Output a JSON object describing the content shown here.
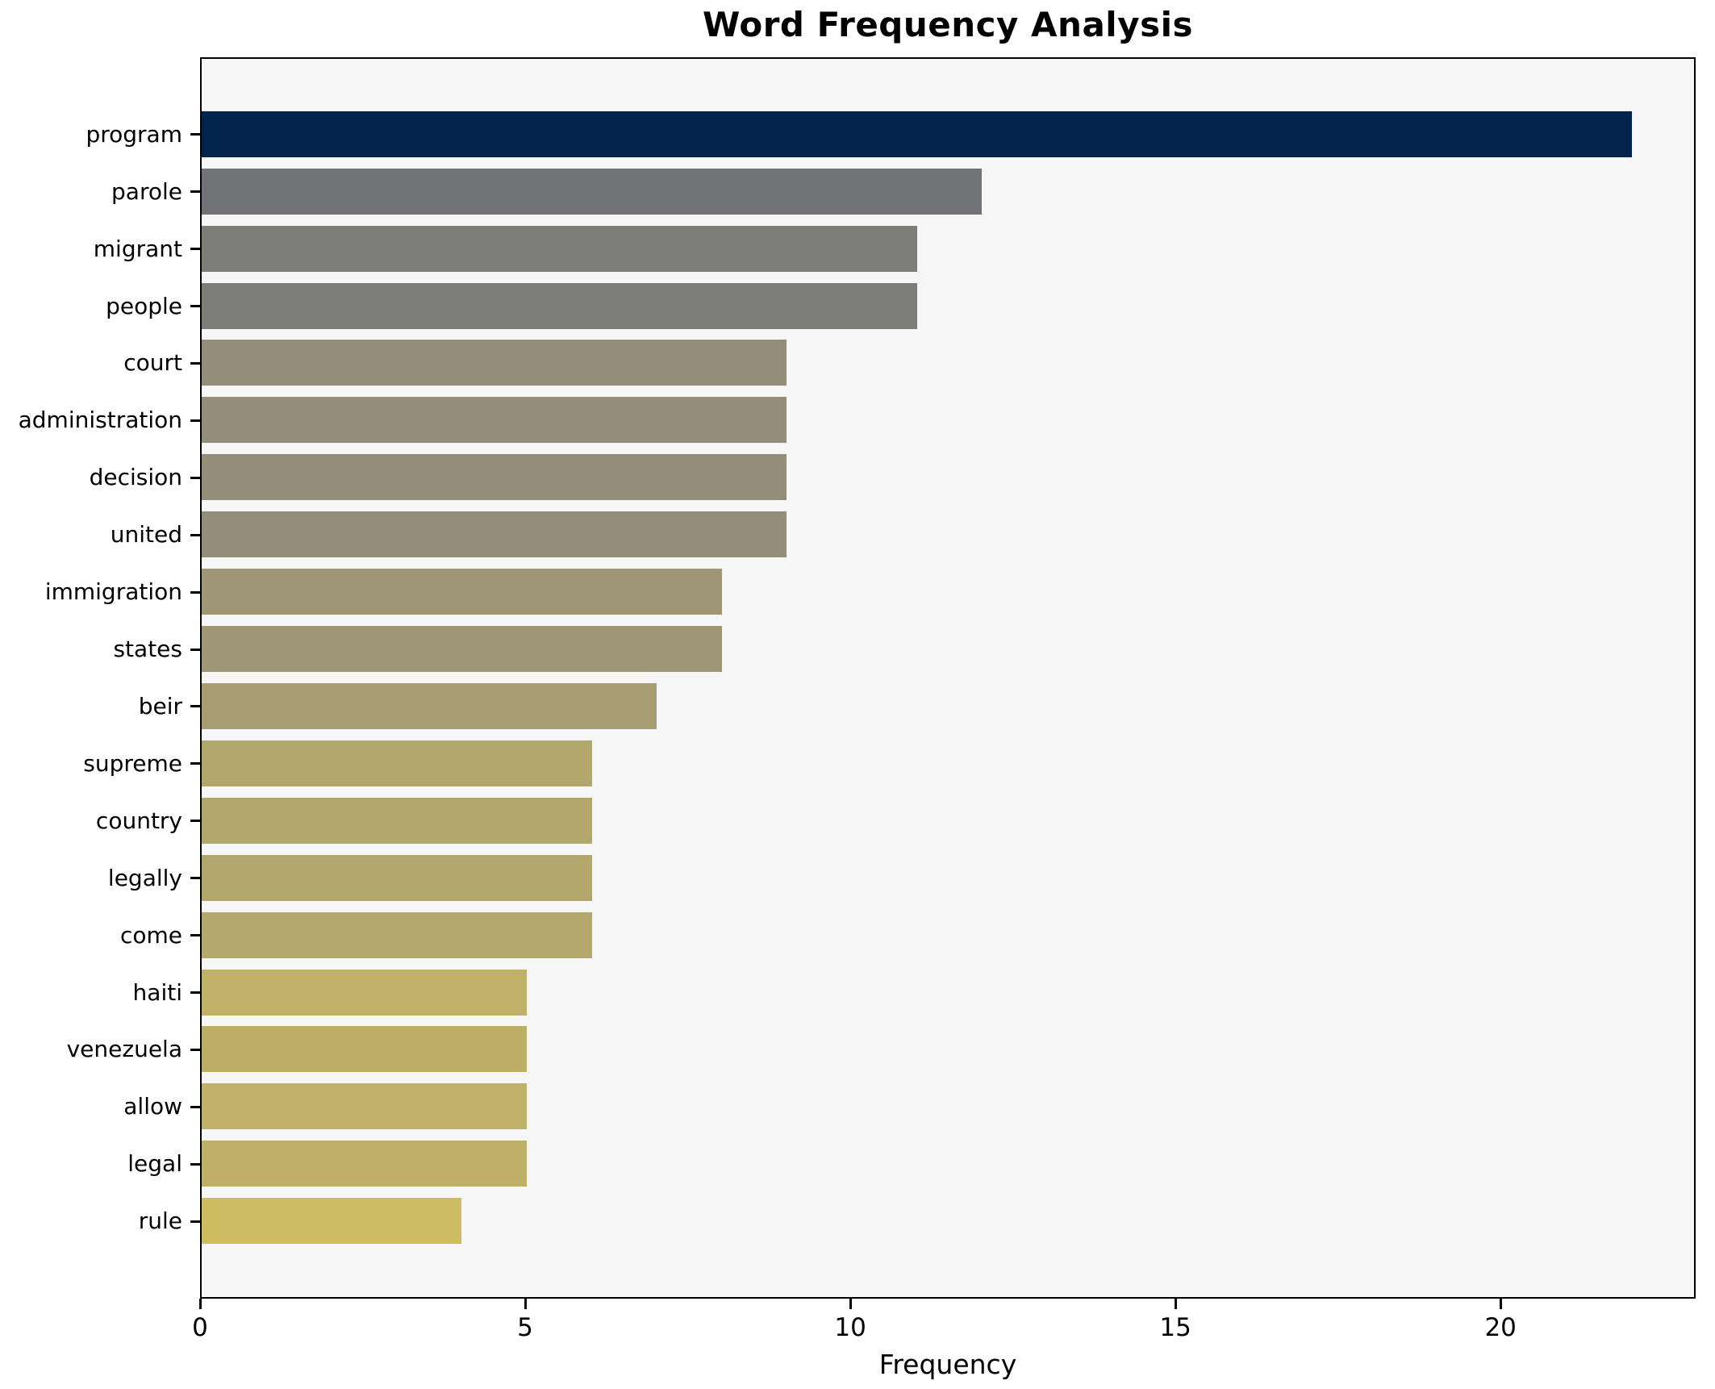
{
  "chart_data": {
    "type": "bar",
    "orientation": "horizontal",
    "title": "Word Frequency Analysis",
    "xlabel": "Frequency",
    "ylabel": "",
    "categories": [
      "program",
      "parole",
      "migrant",
      "people",
      "court",
      "administration",
      "decision",
      "united",
      "immigration",
      "states",
      "beir",
      "supreme",
      "country",
      "legally",
      "come",
      "haiti",
      "venezuela",
      "allow",
      "legal",
      "rule"
    ],
    "values": [
      22,
      12,
      11,
      11,
      9,
      9,
      9,
      9,
      8,
      8,
      7,
      6,
      6,
      6,
      6,
      5,
      5,
      5,
      5,
      4
    ],
    "bar_colors": [
      "#02234c",
      "#717376",
      "#7c7c78",
      "#7c7c78",
      "#928e79",
      "#928e79",
      "#928e79",
      "#928e79",
      "#9e9674",
      "#9e9674",
      "#a79d72",
      "#b2a76b",
      "#b2a76b",
      "#b2a76b",
      "#b3a96c",
      "#bfb168",
      "#bcae67",
      "#bfb169",
      "#bfb069",
      "#ccbd62",
      "#note-unused"
    ],
    "xlim": [
      0,
      23
    ],
    "xticks": [
      0,
      5,
      10,
      15,
      20
    ],
    "grid": false,
    "legend_position": "none",
    "plot_bg": "#f6f6f7",
    "fig_bg": "#ffffff",
    "colormap": "cividis-reversed-by-value"
  }
}
